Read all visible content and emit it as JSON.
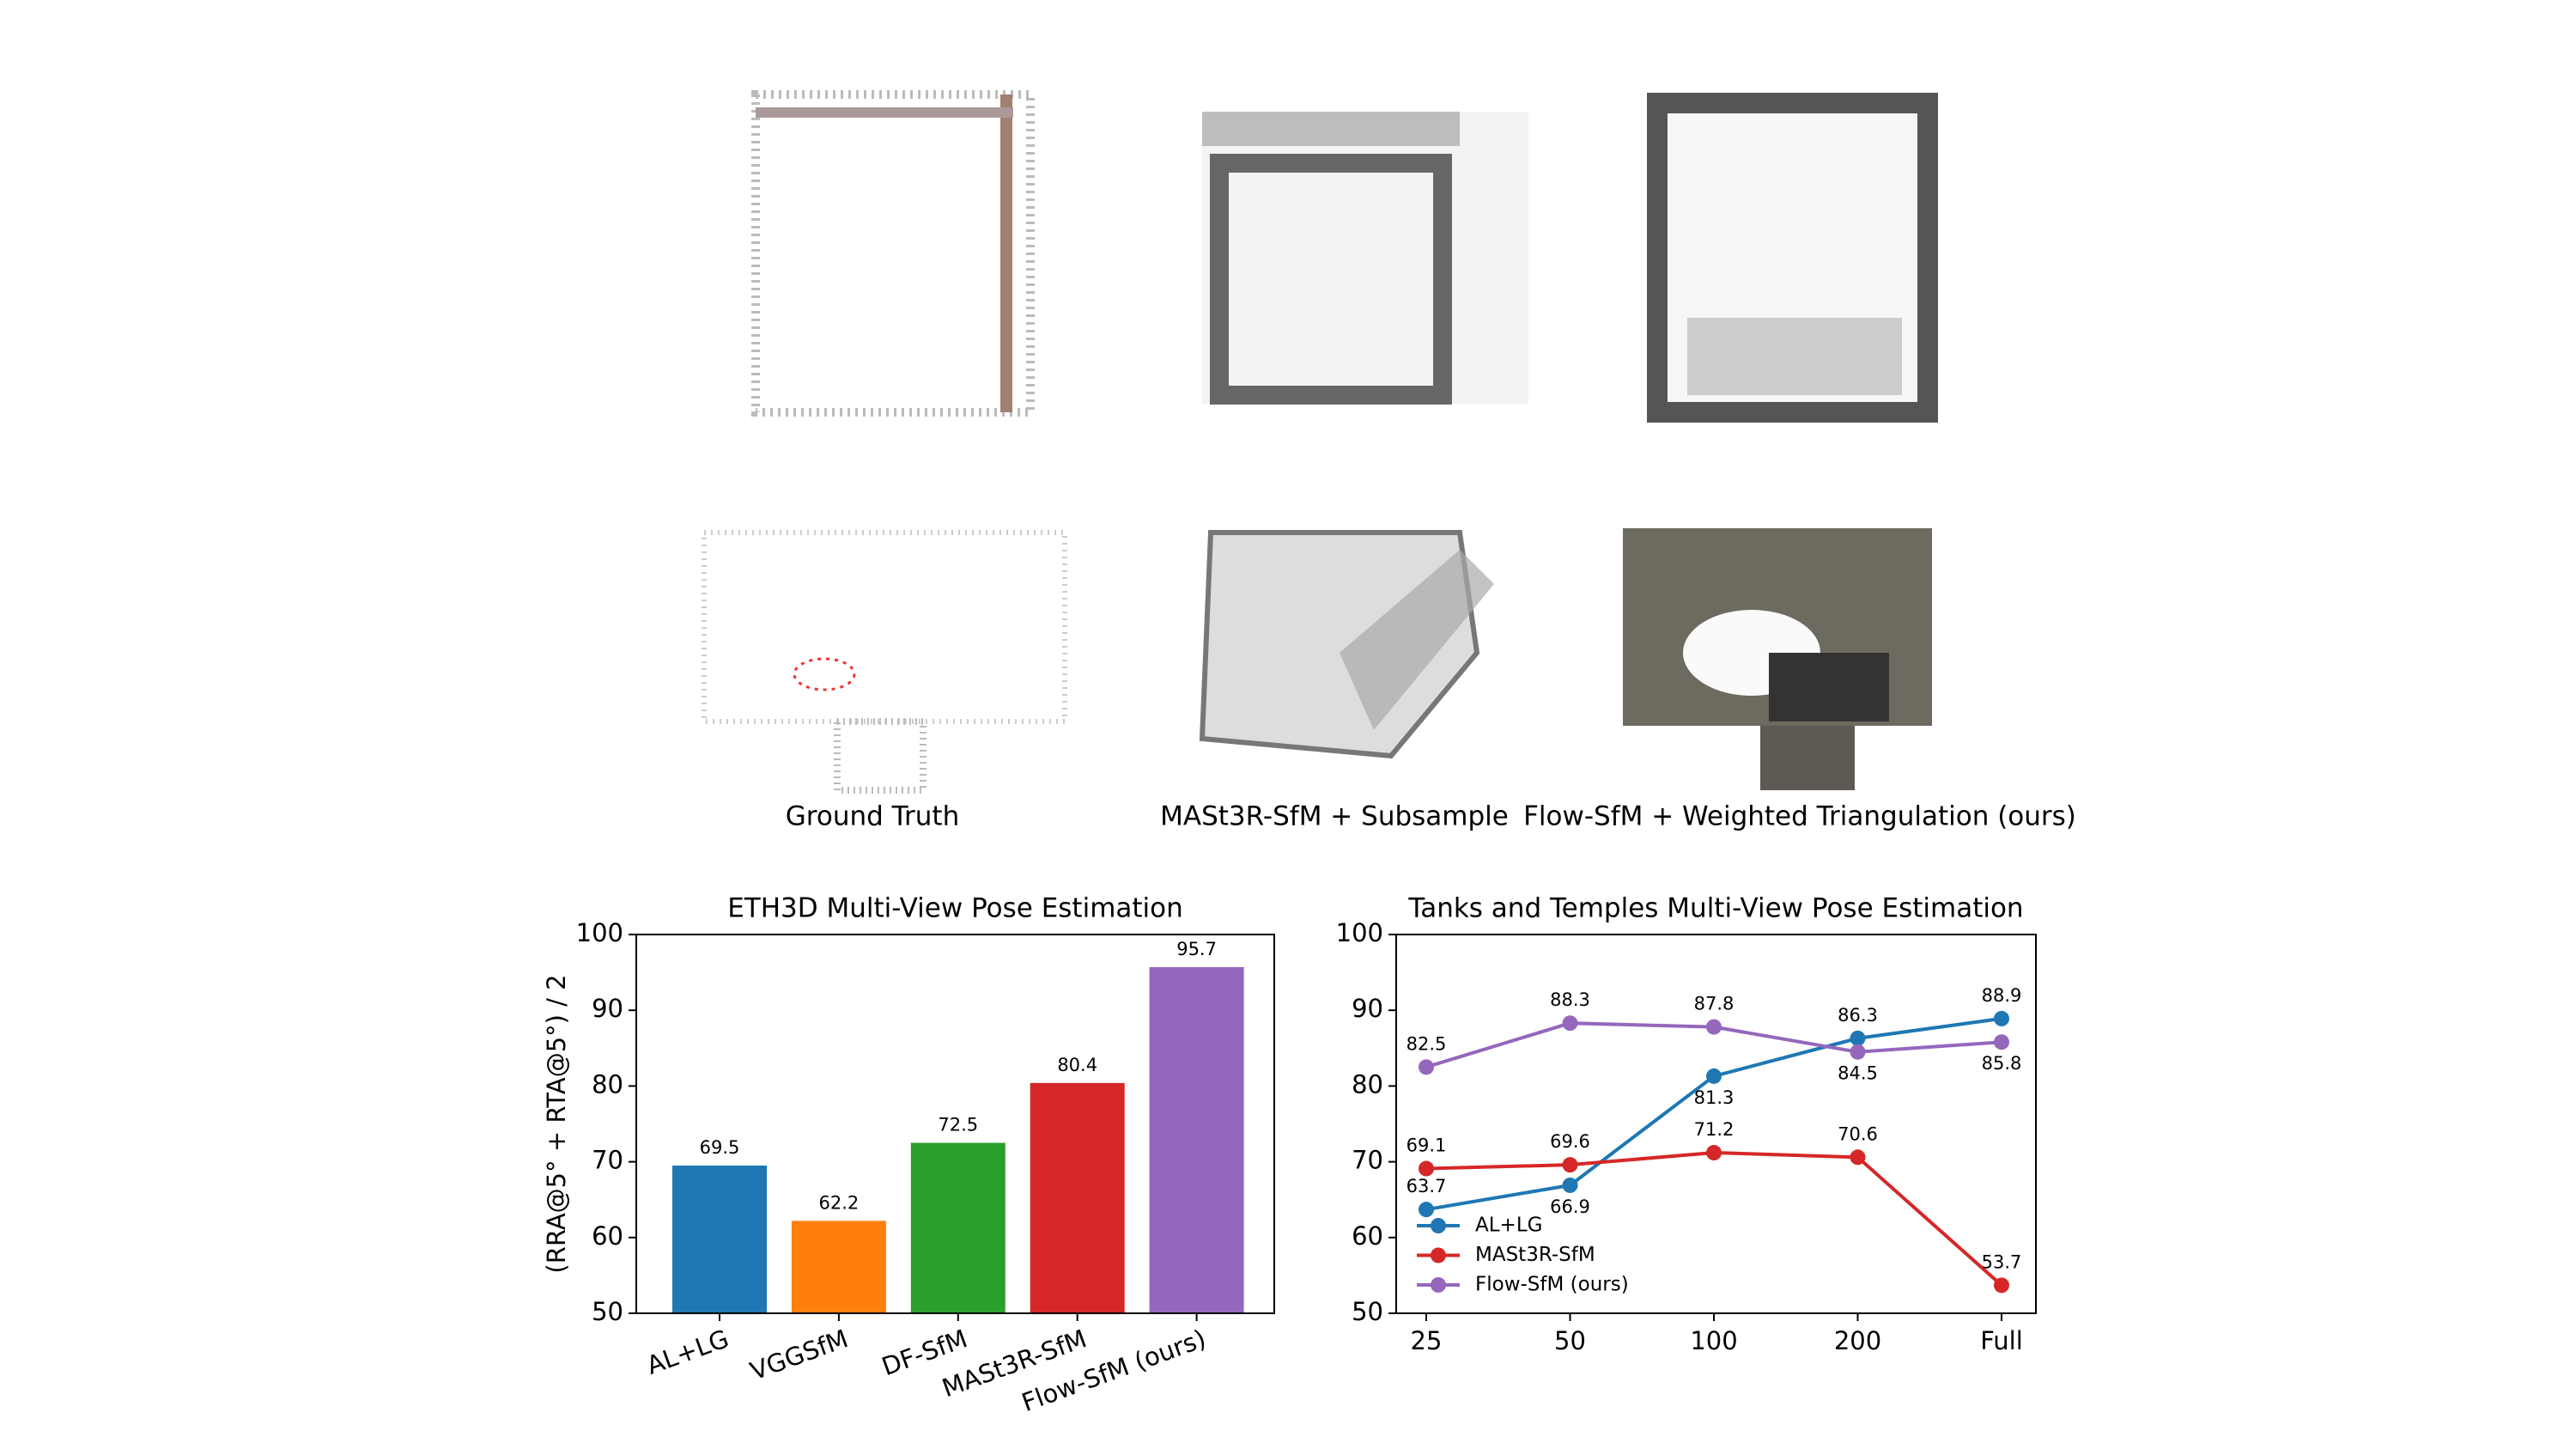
{
  "figure": {
    "captions": [
      "Ground Truth",
      "MASt3R-SfM + Subsample",
      "Flow-SfM + Weighted Triangulation (ours)"
    ]
  },
  "chart_data": [
    {
      "type": "bar",
      "title": "ETH3D Multi-View Pose Estimation",
      "y_label": "(RRA@5° + RTA@5°) / 2",
      "categories": [
        "AL+LG",
        "VGGSfM",
        "DF-SfM",
        "MASt3R-SfM",
        "Flow-SfM (ours)"
      ],
      "values": [
        69.5,
        62.2,
        72.5,
        80.4,
        95.7
      ],
      "colors": [
        "#1f77b4",
        "#ff7f0e",
        "#2ca02c",
        "#d62728",
        "#9467bd"
      ],
      "ylim": [
        50,
        100
      ],
      "yticks": [
        50,
        60,
        70,
        80,
        90,
        100
      ]
    },
    {
      "type": "line",
      "title": "Tanks and Temples Multi-View Pose Estimation",
      "categories": [
        "25",
        "50",
        "100",
        "200",
        "Full"
      ],
      "series": [
        {
          "name": "AL+LG",
          "color": "#1f77b4",
          "values": [
            63.7,
            66.9,
            81.3,
            86.3,
            88.9
          ]
        },
        {
          "name": "MASt3R-SfM",
          "color": "#d62728",
          "values": [
            69.1,
            69.6,
            71.2,
            70.6,
            53.7
          ]
        },
        {
          "name": "Flow-SfM (ours)",
          "color": "#9467bd",
          "values": [
            82.5,
            88.3,
            87.8,
            84.5,
            85.8
          ]
        }
      ],
      "ylim": [
        50,
        100
      ],
      "yticks": [
        50,
        60,
        70,
        80,
        90,
        100
      ],
      "legend": "lower left"
    }
  ]
}
